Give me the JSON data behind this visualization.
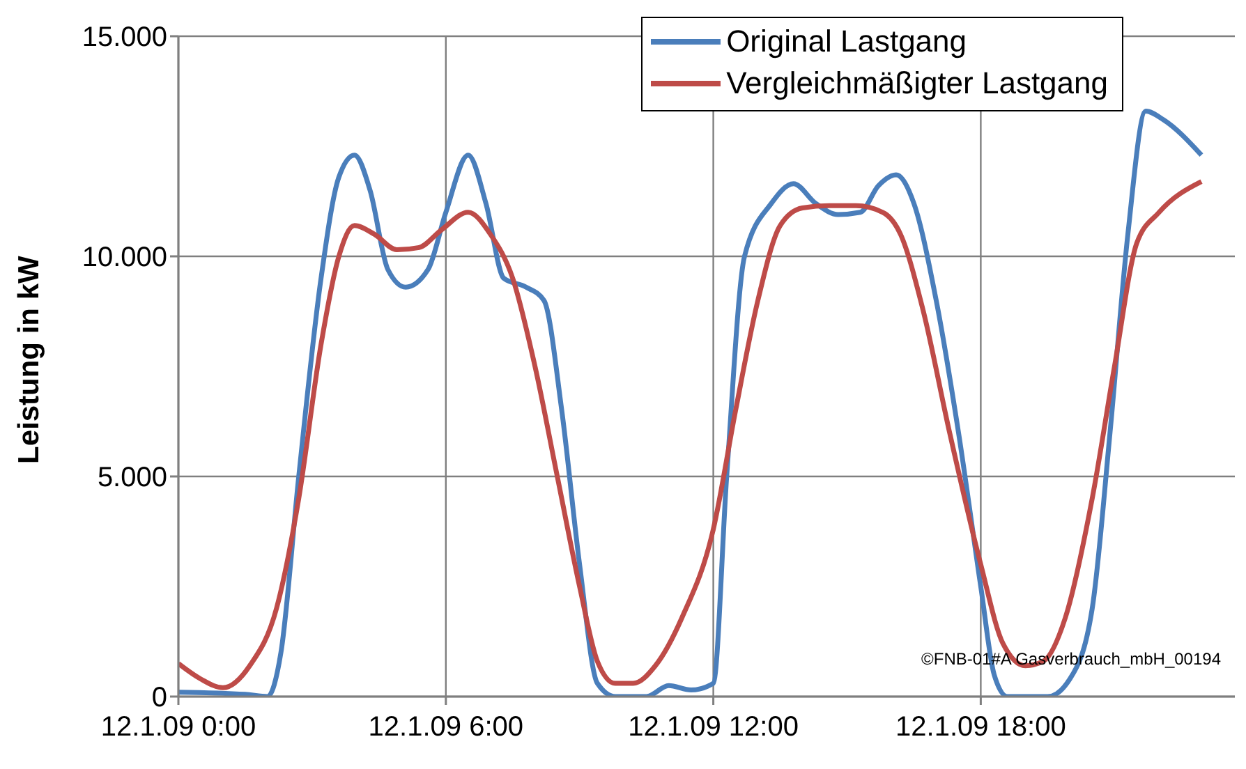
{
  "chart_data": {
    "type": "line",
    "ylabel": "Leistung in kW",
    "xlim": [
      "--01-12T00:00",
      "--01-12T23:42"
    ],
    "xticks": [
      {
        "value": "--01-12T00:00",
        "label": "12.1.09 0:00"
      },
      {
        "value": "--01-12T06:00",
        "label": "12.1.09 6:00"
      },
      {
        "value": "--01-12T12:00",
        "label": "12.1.09 12:00"
      },
      {
        "value": "--01-12T18:00",
        "label": "12.1.09 18:00"
      }
    ],
    "ylim": [
      0,
      15000
    ],
    "yticks": [
      {
        "value": 0,
        "label": "0"
      },
      {
        "value": 5000,
        "label": "5.000"
      },
      {
        "value": 10000,
        "label": "10.000"
      },
      {
        "value": 15000,
        "label": "15.000"
      }
    ],
    "grid": true,
    "legend": "top right",
    "marker": "none",
    "line_style": "solid",
    "annotations": [
      "©FNB-01#A Gasverbrauch_mbH_00194"
    ],
    "series": [
      {
        "name": "Original Lastgang",
        "color": "#4a7ebb",
        "x": [
          "--01-12T00:00",
          "--01-12T01:30",
          "--01-12T02:00",
          "--01-12T02:18",
          "--01-12T02:42",
          "--01-12T03:12",
          "--01-12T03:36",
          "--01-12T03:57",
          "--01-12T04:18",
          "--01-12T04:42",
          "--01-12T05:06",
          "--01-12T05:36",
          "--01-12T06:00",
          "--01-12T06:30",
          "--01-12T06:54",
          "--01-12T07:18",
          "--01-12T07:48",
          "--01-12T08:12",
          "--01-12T08:36",
          "--01-12T09:00",
          "--01-12T09:24",
          "--01-12T09:48",
          "--01-12T10:30",
          "--01-12T11:00",
          "--01-12T11:30",
          "--01-12T12:00",
          "--01-12T12:18",
          "--01-12T12:42",
          "--01-12T13:18",
          "--01-12T13:48",
          "--01-12T14:18",
          "--01-12T14:48",
          "--01-12T15:18",
          "--01-12T15:42",
          "--01-12T16:06",
          "--01-12T16:30",
          "--01-12T17:00",
          "--01-12T17:30",
          "--01-12T18:00",
          "--01-12T18:18",
          "--01-12T18:36",
          "--01-12T19:30",
          "--01-12T20:00",
          "--01-12T20:30",
          "--01-12T20:54",
          "--01-12T21:18",
          "--01-12T21:42",
          "--01-12T22:06",
          "--01-12T22:57"
        ],
        "values": [
          100,
          50,
          0,
          1000,
          5000,
          9500,
          11800,
          12300,
          11500,
          9700,
          9300,
          9700,
          11000,
          12300,
          11200,
          9500,
          9300,
          9000,
          6500,
          3000,
          300,
          0,
          0,
          250,
          150,
          300,
          5000,
          10000,
          11200,
          11650,
          11200,
          10950,
          11000,
          11600,
          11850,
          11200,
          9000,
          6000,
          2500,
          500,
          0,
          0,
          400,
          2000,
          6000,
          10500,
          13300,
          13100,
          12300
        ]
      },
      {
        "name": "Vergleichmäßigter Lastgang",
        "color": "#be4b48",
        "x": [
          "--01-12T00:00",
          "--01-12T00:30",
          "--01-12T01:00",
          "--01-12T01:36",
          "--01-12T02:12",
          "--01-12T02:42",
          "--01-12T03:12",
          "--01-12T03:36",
          "--01-12T03:57",
          "--01-12T04:24",
          "--01-12T04:54",
          "--01-12T05:24",
          "--01-12T05:54",
          "--01-12T06:30",
          "--01-12T07:00",
          "--01-12T07:30",
          "--01-12T08:00",
          "--01-12T08:30",
          "--01-12T09:00",
          "--01-12T09:24",
          "--01-12T09:48",
          "--01-12T10:12",
          "--01-12T10:42",
          "--01-12T11:18",
          "--01-12T12:00",
          "--01-12T12:30",
          "--01-12T13:00",
          "--01-12T13:30",
          "--01-12T14:00",
          "--01-12T14:36",
          "--01-12T15:12",
          "--01-12T15:48",
          "--01-12T16:12",
          "--01-12T16:42",
          "--01-12T17:18",
          "--01-12T18:00",
          "--01-12T18:30",
          "--01-12T19:00",
          "--01-12T19:24",
          "--01-12T19:54",
          "--01-12T20:30",
          "--01-12T21:00",
          "--01-12T21:30",
          "--01-12T22:00",
          "--01-12T22:57"
        ],
        "values": [
          750,
          400,
          200,
          700,
          2000,
          4500,
          8000,
          10000,
          10700,
          10500,
          10150,
          10200,
          10600,
          11000,
          10500,
          9500,
          7500,
          5000,
          2500,
          800,
          300,
          300,
          700,
          1800,
          3800,
          6500,
          9000,
          10700,
          11100,
          11150,
          11150,
          11000,
          10500,
          8800,
          6000,
          3000,
          1200,
          700,
          800,
          1800,
          4500,
          7500,
          10300,
          11000,
          11700
        ]
      }
    ]
  }
}
